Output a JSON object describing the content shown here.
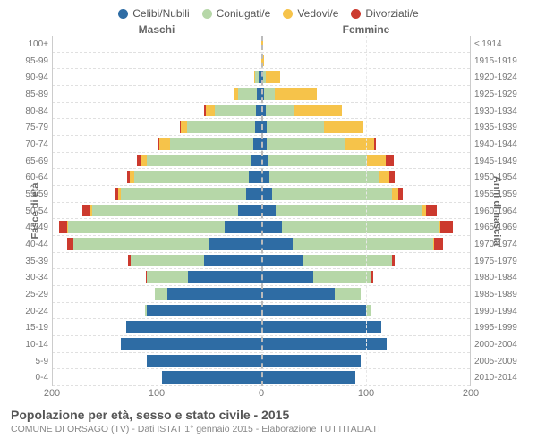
{
  "legend": [
    {
      "label": "Celibi/Nubili",
      "color": "#2e6ca4"
    },
    {
      "label": "Coniugati/e",
      "color": "#b6d7a8"
    },
    {
      "label": "Vedovi/e",
      "color": "#f6c34a"
    },
    {
      "label": "Divorziati/e",
      "color": "#cc3a2e"
    }
  ],
  "headers": {
    "male": "Maschi",
    "female": "Femmine"
  },
  "axis": {
    "left_title": "Fasce di età",
    "right_title": "Anni di nascita",
    "xmax": 200,
    "xticks": [
      200,
      100,
      0,
      100,
      200
    ]
  },
  "title": "Popolazione per età, sesso e stato civile - 2015",
  "subtitle": "COMUNE DI ORSAGO (TV) - Dati ISTAT 1° gennaio 2015 - Elaborazione TUTTITALIA.IT",
  "rows": [
    {
      "age": "100+",
      "birth": "≤ 1914",
      "m": {
        "c": 0,
        "m": 0,
        "w": 0,
        "d": 0
      },
      "f": {
        "c": 0,
        "m": 0,
        "w": 2,
        "d": 0
      }
    },
    {
      "age": "95-99",
      "birth": "1915-1919",
      "m": {
        "c": 0,
        "m": 0,
        "w": 0,
        "d": 0
      },
      "f": {
        "c": 0,
        "m": 0,
        "w": 3,
        "d": 0
      }
    },
    {
      "age": "90-94",
      "birth": "1920-1924",
      "m": {
        "c": 3,
        "m": 3,
        "w": 1,
        "d": 0
      },
      "f": {
        "c": 2,
        "m": 2,
        "w": 14,
        "d": 0
      }
    },
    {
      "age": "85-89",
      "birth": "1925-1929",
      "m": {
        "c": 4,
        "m": 18,
        "w": 5,
        "d": 0
      },
      "f": {
        "c": 3,
        "m": 10,
        "w": 40,
        "d": 0
      }
    },
    {
      "age": "80-84",
      "birth": "1930-1934",
      "m": {
        "c": 5,
        "m": 40,
        "w": 8,
        "d": 2
      },
      "f": {
        "c": 4,
        "m": 28,
        "w": 45,
        "d": 0
      }
    },
    {
      "age": "75-79",
      "birth": "1935-1939",
      "m": {
        "c": 6,
        "m": 65,
        "w": 6,
        "d": 1
      },
      "f": {
        "c": 5,
        "m": 55,
        "w": 38,
        "d": 0
      }
    },
    {
      "age": "70-74",
      "birth": "1940-1944",
      "m": {
        "c": 8,
        "m": 80,
        "w": 10,
        "d": 2
      },
      "f": {
        "c": 5,
        "m": 75,
        "w": 28,
        "d": 2
      }
    },
    {
      "age": "65-69",
      "birth": "1945-1949",
      "m": {
        "c": 10,
        "m": 100,
        "w": 6,
        "d": 3
      },
      "f": {
        "c": 6,
        "m": 95,
        "w": 18,
        "d": 8
      }
    },
    {
      "age": "60-64",
      "birth": "1950-1954",
      "m": {
        "c": 12,
        "m": 110,
        "w": 4,
        "d": 3
      },
      "f": {
        "c": 8,
        "m": 105,
        "w": 10,
        "d": 5
      }
    },
    {
      "age": "55-59",
      "birth": "1955-1959",
      "m": {
        "c": 15,
        "m": 120,
        "w": 2,
        "d": 4
      },
      "f": {
        "c": 10,
        "m": 115,
        "w": 6,
        "d": 5
      }
    },
    {
      "age": "50-54",
      "birth": "1960-1964",
      "m": {
        "c": 22,
        "m": 140,
        "w": 2,
        "d": 8
      },
      "f": {
        "c": 14,
        "m": 140,
        "w": 4,
        "d": 10
      }
    },
    {
      "age": "45-49",
      "birth": "1965-1969",
      "m": {
        "c": 35,
        "m": 150,
        "w": 1,
        "d": 8
      },
      "f": {
        "c": 20,
        "m": 150,
        "w": 2,
        "d": 12
      }
    },
    {
      "age": "40-44",
      "birth": "1970-1974",
      "m": {
        "c": 50,
        "m": 130,
        "w": 0,
        "d": 6
      },
      "f": {
        "c": 30,
        "m": 135,
        "w": 1,
        "d": 8
      }
    },
    {
      "age": "35-39",
      "birth": "1975-1979",
      "m": {
        "c": 55,
        "m": 70,
        "w": 0,
        "d": 3
      },
      "f": {
        "c": 40,
        "m": 85,
        "w": 0,
        "d": 3
      }
    },
    {
      "age": "30-34",
      "birth": "1980-1984",
      "m": {
        "c": 70,
        "m": 40,
        "w": 0,
        "d": 1
      },
      "f": {
        "c": 50,
        "m": 55,
        "w": 0,
        "d": 2
      }
    },
    {
      "age": "25-29",
      "birth": "1985-1989",
      "m": {
        "c": 90,
        "m": 12,
        "w": 0,
        "d": 0
      },
      "f": {
        "c": 70,
        "m": 25,
        "w": 0,
        "d": 0
      }
    },
    {
      "age": "20-24",
      "birth": "1990-1994",
      "m": {
        "c": 110,
        "m": 2,
        "w": 0,
        "d": 0
      },
      "f": {
        "c": 100,
        "m": 6,
        "w": 0,
        "d": 0
      }
    },
    {
      "age": "15-19",
      "birth": "1995-1999",
      "m": {
        "c": 130,
        "m": 0,
        "w": 0,
        "d": 0
      },
      "f": {
        "c": 115,
        "m": 0,
        "w": 0,
        "d": 0
      }
    },
    {
      "age": "10-14",
      "birth": "2000-2004",
      "m": {
        "c": 135,
        "m": 0,
        "w": 0,
        "d": 0
      },
      "f": {
        "c": 120,
        "m": 0,
        "w": 0,
        "d": 0
      }
    },
    {
      "age": "5-9",
      "birth": "2005-2009",
      "m": {
        "c": 110,
        "m": 0,
        "w": 0,
        "d": 0
      },
      "f": {
        "c": 95,
        "m": 0,
        "w": 0,
        "d": 0
      }
    },
    {
      "age": "0-4",
      "birth": "2010-2014",
      "m": {
        "c": 95,
        "m": 0,
        "w": 0,
        "d": 0
      },
      "f": {
        "c": 90,
        "m": 0,
        "w": 0,
        "d": 0
      }
    }
  ],
  "colors": {
    "c": "#2e6ca4",
    "m": "#b6d7a8",
    "w": "#f6c34a",
    "d": "#cc3a2e"
  }
}
